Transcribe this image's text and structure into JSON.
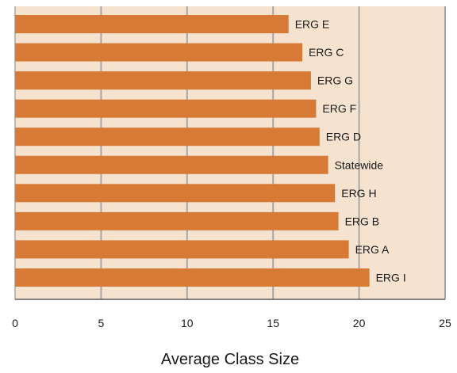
{
  "chart_data": {
    "type": "bar",
    "orientation": "horizontal",
    "categories": [
      "ERG E",
      "ERG C",
      "ERG G",
      "ERG F",
      "ERG D",
      "Statewide",
      "ERG H",
      "ERG B",
      "ERG A",
      "ERG I"
    ],
    "values": [
      15.9,
      16.7,
      17.2,
      17.5,
      17.7,
      18.2,
      18.6,
      18.8,
      19.4,
      20.6
    ],
    "xlabel": "Average Class Size",
    "ylabel": "",
    "title": "",
    "xlim": [
      0,
      25
    ],
    "xticks": [
      "0",
      "5",
      "10",
      "15",
      "20",
      "25"
    ],
    "grid": true,
    "legend": "none",
    "colors": {
      "bar": "#D67A35",
      "plot_background": "#F5E3D0",
      "grid": "#A6A6A6",
      "axis": "#5A5A5A",
      "text": "#1A1A1A"
    }
  }
}
